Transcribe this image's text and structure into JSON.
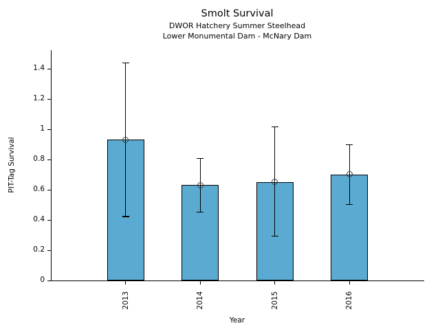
{
  "chart_data": {
    "type": "bar",
    "title": "Smolt Survival",
    "subtitle_line1": "DWOR Hatchery Summer Steelhead",
    "subtitle_line2": "Lower Monumental Dam - McNary Dam",
    "xlabel": "Year",
    "ylabel": "PIT-Tag Survival",
    "categories": [
      "2013",
      "2014",
      "2015",
      "2016"
    ],
    "values": [
      0.93,
      0.63,
      0.65,
      0.7
    ],
    "error_low": [
      0.42,
      0.45,
      0.29,
      0.5
    ],
    "error_high": [
      1.44,
      0.81,
      1.02,
      0.9
    ],
    "yticks": [
      0,
      0.2,
      0.4,
      0.6,
      0.8,
      1,
      1.2,
      1.4
    ],
    "ytick_labels": [
      "0",
      "0.2",
      "0.4",
      "0.6",
      "0.8",
      "1",
      "1.2",
      "1.4"
    ],
    "ylim": [
      0,
      1.51
    ],
    "grid": false,
    "legend": null,
    "bar_color": "#5AAAD2",
    "bar_edge_color": "#000000",
    "error_bar_color": "#000000",
    "marker": "open-circle",
    "marker_edge_color": "#3a3a3a"
  }
}
